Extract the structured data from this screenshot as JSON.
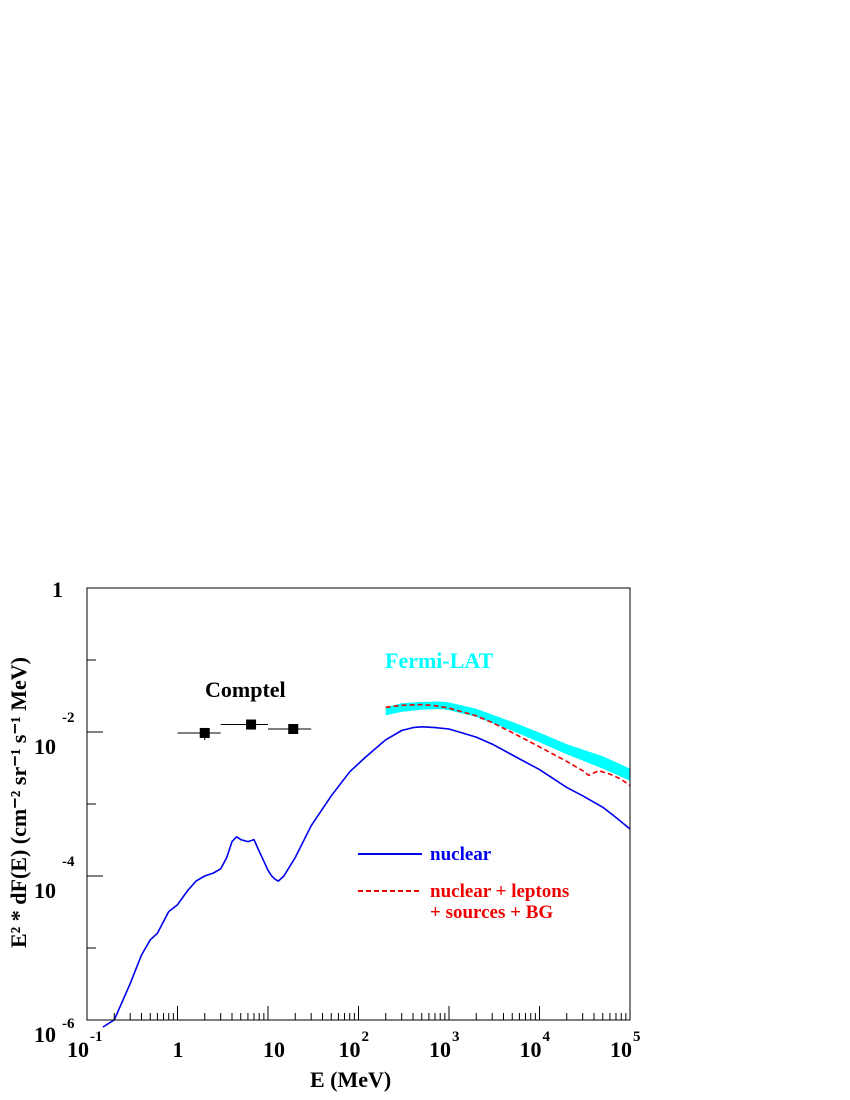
{
  "chart_data": {
    "type": "line",
    "title": "",
    "xlabel": "E (MeV)",
    "ylabel": "E² * dF(E)  (cm⁻² sr⁻¹ s⁻¹ MeV)",
    "xscale": "log",
    "yscale": "log",
    "xlim": [
      0.1,
      100000
    ],
    "ylim": [
      1e-06,
      1
    ],
    "grid": false,
    "x_tick_labels": [
      {
        "base": "10",
        "exp": "-1"
      },
      {
        "base": "1",
        "exp": ""
      },
      {
        "base": "10",
        "exp": ""
      },
      {
        "base": "10",
        "exp": "2"
      },
      {
        "base": "10",
        "exp": "3"
      },
      {
        "base": "10",
        "exp": "4"
      },
      {
        "base": "10",
        "exp": "5"
      }
    ],
    "y_tick_labels": [
      {
        "base": "1",
        "exp": ""
      },
      {
        "base": "10",
        "exp": "-2"
      },
      {
        "base": "10",
        "exp": "-4"
      },
      {
        "base": "10",
        "exp": "-6"
      }
    ],
    "annotations": {
      "comptel": "Comptel",
      "fermi": "Fermi-LAT"
    },
    "legend": [
      {
        "name": "nuclear",
        "line": "solid",
        "color": "#0000ee"
      },
      {
        "name": "nuclear + leptons",
        "line": "dashed",
        "color": "#ee0000"
      },
      {
        "name": "+ sources + BG",
        "line": "none",
        "color": "#ee0000"
      }
    ],
    "series": [
      {
        "name": "nuclear",
        "color": "#0000ee",
        "style": "solid",
        "points": [
          [
            0.15,
            8e-07
          ],
          [
            0.2,
            1e-06
          ],
          [
            0.3,
            3.2e-06
          ],
          [
            0.4,
            8e-06
          ],
          [
            0.5,
            1.3e-05
          ],
          [
            0.6,
            1.6e-05
          ],
          [
            0.8,
            3.2e-05
          ],
          [
            1,
            4e-05
          ],
          [
            1.3,
            6.3e-05
          ],
          [
            1.6,
            8.5e-05
          ],
          [
            2,
            0.0001
          ],
          [
            2.5,
            0.00011
          ],
          [
            3,
            0.000126
          ],
          [
            3.5,
            0.00018
          ],
          [
            4,
            0.0003
          ],
          [
            4.5,
            0.00035
          ],
          [
            5,
            0.00032
          ],
          [
            6,
            0.0003
          ],
          [
            7,
            0.00032
          ],
          [
            8,
            0.00022
          ],
          [
            9,
            0.00016
          ],
          [
            10,
            0.00012
          ],
          [
            11,
            0.0001
          ],
          [
            12,
            9e-05
          ],
          [
            13,
            8.5e-05
          ],
          [
            15,
            0.0001
          ],
          [
            20,
            0.00018
          ],
          [
            30,
            0.0005
          ],
          [
            50,
            0.0013
          ],
          [
            80,
            0.0028
          ],
          [
            120,
            0.0045
          ],
          [
            200,
            0.0078
          ],
          [
            300,
            0.0105
          ],
          [
            400,
            0.0115
          ],
          [
            500,
            0.0118
          ],
          [
            700,
            0.0115
          ],
          [
            1000,
            0.011
          ],
          [
            2000,
            0.0085
          ],
          [
            3000,
            0.0068
          ],
          [
            5000,
            0.0048
          ],
          [
            10000,
            0.003
          ],
          [
            20000,
            0.0017
          ],
          [
            30000,
            0.0013
          ],
          [
            50000,
            0.0009
          ],
          [
            70000,
            0.00065
          ],
          [
            100000,
            0.00045
          ]
        ]
      },
      {
        "name": "nuclear + leptons + sources + BG",
        "color": "#ee0000",
        "style": "dashed",
        "points": [
          [
            200,
            0.022
          ],
          [
            300,
            0.0235
          ],
          [
            500,
            0.024
          ],
          [
            700,
            0.0232
          ],
          [
            1000,
            0.0215
          ],
          [
            2000,
            0.0168
          ],
          [
            3000,
            0.0135
          ],
          [
            5000,
            0.0098
          ],
          [
            10000,
            0.0062
          ],
          [
            20000,
            0.0039
          ],
          [
            30000,
            0.0029
          ],
          [
            35000,
            0.0025
          ],
          [
            40000,
            0.0027
          ],
          [
            45000,
            0.0029
          ],
          [
            60000,
            0.0026
          ],
          [
            80000,
            0.0022
          ],
          [
            100000,
            0.0018
          ]
        ]
      }
    ],
    "bands": [
      {
        "name": "Fermi-LAT",
        "color": "#00ffff",
        "upper": [
          [
            200,
            0.022
          ],
          [
            300,
            0.025
          ],
          [
            500,
            0.0262
          ],
          [
            800,
            0.0265
          ],
          [
            1000,
            0.0258
          ],
          [
            2000,
            0.021
          ],
          [
            5000,
            0.0138
          ],
          [
            10000,
            0.0098
          ],
          [
            20000,
            0.0068
          ],
          [
            50000,
            0.0046
          ],
          [
            100000,
            0.0031
          ]
        ],
        "lower": [
          [
            200,
            0.017
          ],
          [
            300,
            0.019
          ],
          [
            500,
            0.0205
          ],
          [
            800,
            0.0208
          ],
          [
            1000,
            0.02
          ],
          [
            2000,
            0.0162
          ],
          [
            5000,
            0.0104
          ],
          [
            10000,
            0.0072
          ],
          [
            20000,
            0.0049
          ],
          [
            50000,
            0.0031
          ],
          [
            100000,
            0.0021
          ]
        ]
      }
    ],
    "comptel_points": [
      {
        "x": 2.0,
        "y": 0.0097,
        "xlo": 1.0,
        "xhi": 3.0,
        "ylo": 0.0077,
        "yhi": 0.0112
      },
      {
        "x": 6.5,
        "y": 0.0127,
        "xlo": 3.0,
        "xhi": 10.0,
        "ylo": 0.0108,
        "yhi": 0.0142
      },
      {
        "x": 19.0,
        "y": 0.011,
        "xlo": 10.0,
        "xhi": 30.0,
        "ylo": 0.0094,
        "yhi": 0.0124
      }
    ]
  }
}
